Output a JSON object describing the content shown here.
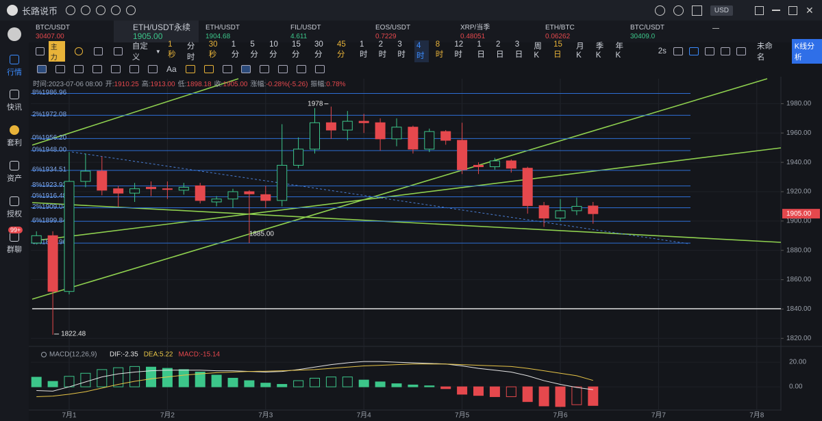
{
  "app": {
    "title": "长路说币",
    "currency": "USD"
  },
  "sidebar": {
    "items": [
      "行情",
      "快讯",
      "套利",
      "资产",
      "授权",
      "群聊"
    ],
    "badge": "99+"
  },
  "tabs": [
    {
      "symbol": "BTC/USDT",
      "price": "30407.00",
      "color": "#e5484d"
    },
    {
      "symbol": "ETH/USDT永续",
      "price": "1905.00",
      "color": "#3cc68a"
    },
    {
      "symbol": "ETH/USDT",
      "price": "1904.68",
      "color": "#3cc68a"
    },
    {
      "symbol": "FIL/USDT",
      "price": "4.611",
      "color": "#3cc68a"
    },
    {
      "symbol": "EOS/USDT",
      "price": "0.7229",
      "color": "#e5484d"
    },
    {
      "symbol": "XRP/当季",
      "price": "0.48051",
      "color": "#e5484d"
    },
    {
      "symbol": "ETH/BTC",
      "price": "0.06262",
      "color": "#e5484d"
    },
    {
      "symbol": "BTC/USDT",
      "price": "30409.0",
      "color": "#3cc68a"
    }
  ],
  "toolbar": {
    "main": "主力",
    "custom": "自定义",
    "intervals": [
      "1秒",
      "分时",
      "30秒",
      "1分",
      "5分",
      "10分",
      "15分",
      "30分",
      "45分",
      "1时",
      "2时",
      "3时",
      "4时",
      "8时",
      "12时",
      "1日",
      "2日",
      "3日",
      "周K",
      "15日",
      "月K",
      "季K",
      "年K"
    ],
    "refresh": "2s",
    "layout": "未命名",
    "analysis": "K线分析",
    "text_tool": "Aa"
  },
  "chart_data": [
    {
      "type": "candlestick",
      "info": [
        {
          "label": "时间:",
          "value": "2023-07-06 08:00"
        },
        {
          "label": "开:",
          "value": "1910.25"
        },
        {
          "label": "高:",
          "value": "1913.00"
        },
        {
          "label": "低:",
          "value": "1898.18"
        },
        {
          "label": "收:",
          "value": "1905.00"
        },
        {
          "label": "涨幅:",
          "value": "-0.28%(-5.26)"
        },
        {
          "label": "振幅:",
          "value": "0.78%"
        }
      ],
      "categories": [
        null,
        null,
        "7月1",
        null,
        null,
        null,
        null,
        null,
        "7月2",
        null,
        null,
        null,
        null,
        null,
        "7月3",
        null,
        null,
        null,
        null,
        null,
        "7月4",
        null,
        null,
        null,
        null,
        null,
        "7月5",
        null,
        null,
        null,
        null,
        null,
        "7月6",
        null,
        null,
        null,
        null,
        null,
        "7月7",
        null,
        null,
        null,
        null,
        null,
        "7月8",
        null
      ],
      "open": [
        1885,
        1890,
        1852,
        1927,
        1934,
        1922,
        1919,
        1923,
        1922,
        1921,
        1924,
        1913,
        1915,
        1920,
        1918,
        1914,
        1938,
        1949,
        1967,
        1962,
        1968,
        1967,
        1956,
        1964,
        1949,
        1961,
        1955,
        1938,
        1937,
        1941,
        1936,
        1910.5,
        1902,
        1907,
        1910.25,
        null,
        null,
        null,
        null,
        null,
        null,
        null,
        null,
        null,
        null,
        null
      ],
      "high": [
        1893,
        1893,
        1947,
        1946,
        1944,
        1924,
        1926,
        1927,
        1927,
        1926,
        1926,
        1917,
        1922,
        1921,
        1924,
        1966,
        1957,
        1977,
        1978,
        1975,
        1973,
        1970,
        1970,
        1965,
        1963,
        1962,
        1967,
        1940,
        1943,
        1942,
        1937,
        1913,
        1915,
        1916,
        1913,
        null,
        null,
        null,
        null,
        null,
        null,
        null,
        null,
        null,
        null,
        null
      ],
      "low": [
        1884,
        1822.48,
        1850,
        1923,
        1917.5,
        1909.6,
        1913,
        1917,
        1915,
        1918,
        1912,
        1910,
        1909,
        1885,
        1909,
        1910,
        1936,
        1946,
        1956,
        1955,
        1960,
        1948,
        1951,
        1946,
        1947,
        1952,
        1932,
        1932,
        1935,
        1933,
        1905,
        1896,
        1900,
        1904,
        1898.18,
        null,
        null,
        null,
        null,
        null,
        null,
        null,
        null,
        null,
        null,
        null
      ],
      "close": [
        1890,
        1852,
        1927,
        1934,
        1921,
        1919,
        1922,
        1922,
        1921.5,
        1923,
        1914,
        1915,
        1920,
        1918.5,
        1914,
        1938,
        1949,
        1967,
        1962,
        1968,
        1967,
        1956,
        1964,
        1949,
        1961,
        1955,
        1935,
        1937,
        1941,
        1936,
        1910.5,
        1902,
        1907,
        1910,
        1905,
        null,
        null,
        null,
        null,
        null,
        null,
        null,
        null,
        null,
        null,
        null
      ],
      "up_color": "#3cc68a",
      "down_color": "#e5484d",
      "ylim": [
        1815,
        1997
      ],
      "yticks": [
        {
          "value": 1820,
          "label": "1820.00"
        },
        {
          "value": 1840,
          "label": "1840.00"
        },
        {
          "value": 1860,
          "label": "1860.00"
        },
        {
          "value": 1880,
          "label": "1880.00"
        },
        {
          "value": 1900,
          "label": "1900.00"
        },
        {
          "value": 1920,
          "label": "1920.00"
        },
        {
          "value": 1940,
          "label": "1940.00"
        },
        {
          "value": 1960,
          "label": "1960.00"
        },
        {
          "value": 1980,
          "label": "1980.00"
        }
      ],
      "last_price": {
        "value": 1905,
        "label": "1905.00"
      },
      "levels": [
        {
          "pct": "8%",
          "price": {
            "value": 1986.96,
            "label": "1986.96"
          }
        },
        {
          "pct": "2%",
          "price": {
            "value": 1972.08,
            "label": "1972.08"
          }
        },
        {
          "pct": "0%",
          "price": {
            "value": 1956.2,
            "label": "1956.20"
          }
        },
        {
          "pct": "0%",
          "price": {
            "value": 1948,
            "label": "1948.00"
          }
        },
        {
          "pct": "6%",
          "price": {
            "value": 1934.51,
            "label": "1934.51"
          }
        },
        {
          "pct": "8%",
          "price": {
            "value": 1923.92,
            "label": "1923.92"
          }
        },
        {
          "pct": "0%",
          "price": {
            "value": 1916.48,
            "label": "1916.48"
          }
        },
        {
          "pct": "2%",
          "price": {
            "value": 1909.04,
            "label": "1909.04"
          }
        },
        {
          "pct": "6%",
          "price": {
            "value": 1899.84,
            "label": "1899.84"
          }
        },
        {
          "pct": "0%",
          "price": {
            "value": 1884.96,
            "label": "1884.96"
          }
        }
      ],
      "annotations": {
        "high": "1978",
        "low": "1822.48",
        "mark": "1885.00"
      }
    },
    {
      "type": "macd",
      "title": "MACD(12,26,9)",
      "series": [
        {
          "name": "DIF:-2.35",
          "color": "#e6e6e6",
          "values": [
            -3,
            -3.5,
            0,
            4,
            8,
            10.5,
            12,
            13,
            13.5,
            13.5,
            13.5,
            13,
            13,
            12.5,
            12,
            12.5,
            14,
            16,
            18,
            19.5,
            20.5,
            20.5,
            20,
            19.5,
            19,
            18.5,
            17,
            15,
            13.5,
            12,
            9,
            5,
            2,
            -0.5,
            -2.35,
            null,
            null,
            null,
            null,
            null,
            null,
            null,
            null,
            null,
            null,
            null
          ]
        },
        {
          "name": "DEA:5.22",
          "color": "#e8c547",
          "values": [
            -8,
            -7.5,
            -6,
            -4,
            -1,
            2,
            4.5,
            6.5,
            8,
            9.5,
            10.5,
            11.5,
            12,
            12.5,
            12.7,
            13,
            13.5,
            14,
            15,
            16,
            17,
            17.5,
            18,
            18.5,
            18.5,
            18.5,
            18,
            17.5,
            17,
            16.5,
            15,
            13,
            11,
            9,
            5.22,
            null,
            null,
            null,
            null,
            null,
            null,
            null,
            null,
            null,
            null,
            null
          ]
        },
        {
          "name": "MACD:-15.14",
          "color": "#e5484d",
          "up_color": "#3cc68a",
          "values": [
            7.8,
            4.4,
            8.5,
            11,
            14,
            15.5,
            16.5,
            16,
            15,
            14,
            12,
            9.5,
            7,
            5,
            3,
            2,
            5,
            7,
            8,
            8,
            5.5,
            4,
            2.5,
            1.5,
            0.8,
            -1.5,
            -6,
            -7,
            -8,
            -8,
            -12,
            -15.5,
            -16,
            -14.5,
            -15.14,
            null,
            null,
            null,
            null,
            null,
            null,
            null,
            null,
            null,
            null,
            null
          ]
        }
      ],
      "ylim": [
        -18.3,
        30.6
      ],
      "yticks": [
        {
          "value": 0,
          "label": "0.00"
        },
        {
          "value": 20,
          "label": "20.00"
        }
      ]
    }
  ]
}
